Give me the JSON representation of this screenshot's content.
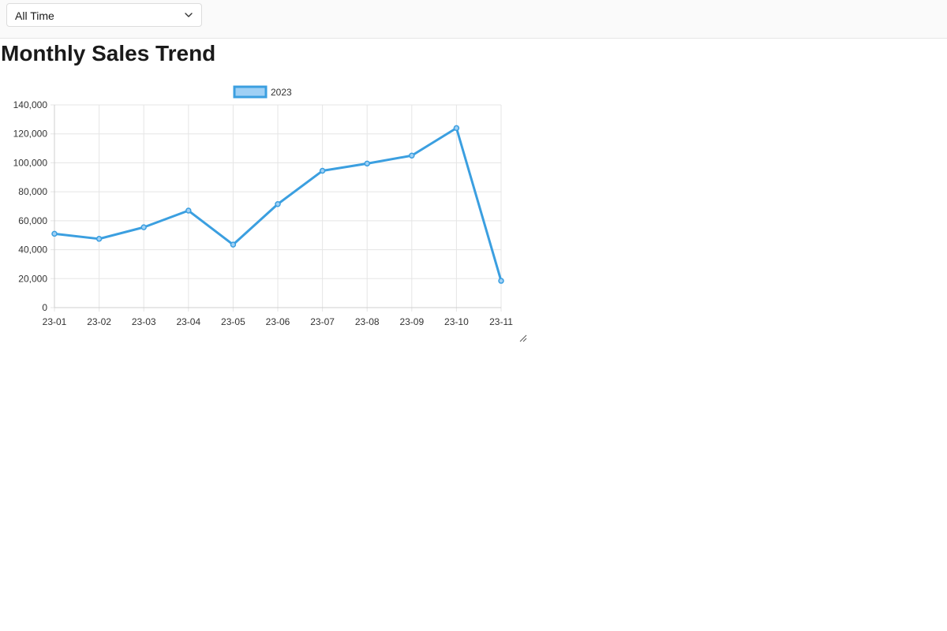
{
  "filter": {
    "selected": "All Time",
    "icon": "chevron-down-icon"
  },
  "page": {
    "title": "Monthly Sales Trend"
  },
  "chart_data": {
    "type": "line",
    "title": "",
    "xlabel": "",
    "ylabel": "",
    "categories": [
      "23-01",
      "23-02",
      "23-03",
      "23-04",
      "23-05",
      "23-06",
      "23-07",
      "23-08",
      "23-09",
      "23-10",
      "23-11"
    ],
    "series": [
      {
        "name": "2023",
        "values": [
          51000,
          47500,
          55500,
          67000,
          43500,
          71500,
          94500,
          99500,
          105000,
          124000,
          18500
        ],
        "color": "#3b9fe0",
        "fill": "#9fd0f5"
      }
    ],
    "ylim": [
      0,
      140000
    ],
    "yticks": [
      0,
      20000,
      40000,
      60000,
      80000,
      100000,
      120000,
      140000
    ],
    "ytick_labels": [
      "0",
      "20,000",
      "40,000",
      "60,000",
      "80,000",
      "100,000",
      "120,000",
      "140,000"
    ],
    "grid": true,
    "legend": "top-center",
    "gridColor": "#e5e5e5"
  }
}
